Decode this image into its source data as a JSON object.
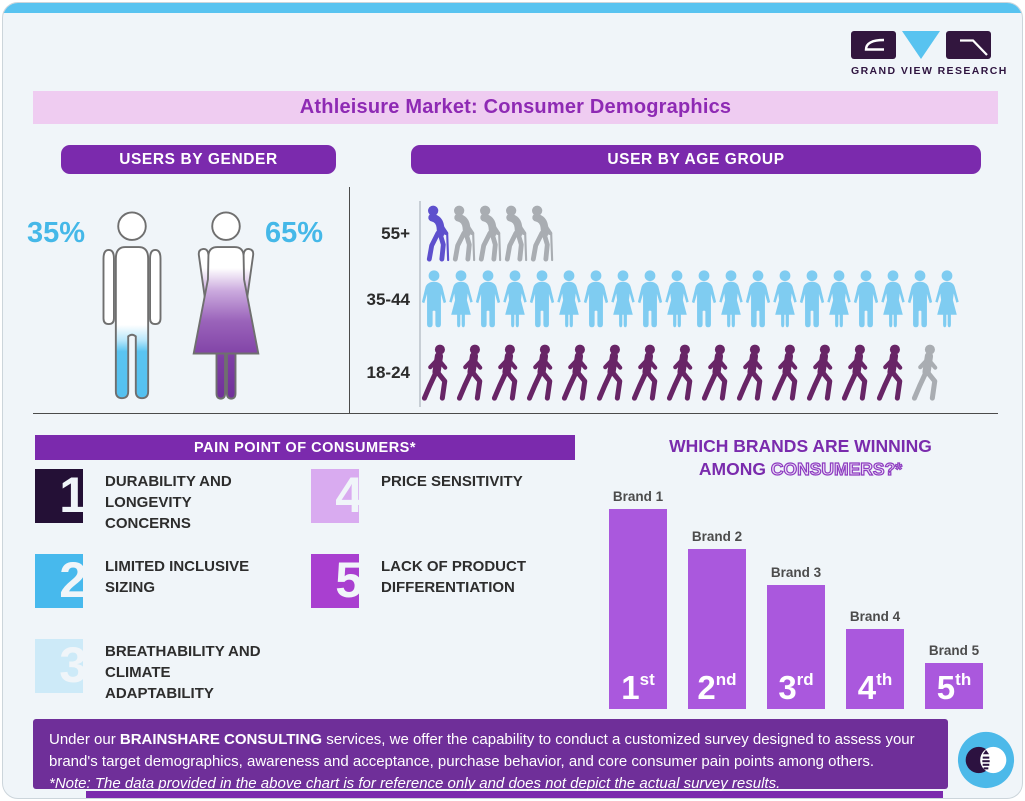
{
  "logo": {
    "text": "GRAND VIEW RESEARCH"
  },
  "page_title": "Athleisure Market: Consumer Demographics",
  "gender_section": {
    "header": "USERS BY GENDER",
    "male_pct": "35%",
    "female_pct": "65%"
  },
  "age_section": {
    "header": "USER BY AGE GROUP",
    "rows": [
      {
        "label": "55+",
        "type": "elderly",
        "total": 5,
        "colored": 1,
        "color": "#5e50cd"
      },
      {
        "label": "35-44",
        "type": "adult",
        "total": 20,
        "colored": 20,
        "color": "#7fccf1"
      },
      {
        "label": "18-24",
        "type": "walker",
        "total": 15,
        "colored": 14,
        "color": "#682566"
      }
    ]
  },
  "pain_points": {
    "header": "PAIN POINT OF CONSUMERS*",
    "items": [
      {
        "num": "1",
        "color": "#241036",
        "label": "DURABILITY AND LONGEVITY CONCERNS"
      },
      {
        "num": "2",
        "color": "#47b9ed",
        "label": "LIMITED INCLUSIVE SIZING"
      },
      {
        "num": "3",
        "color": "#cdeaf8",
        "label": "BREATHABILITY AND CLIMATE ADAPTABILITY"
      },
      {
        "num": "4",
        "color": "#d9abf0",
        "label": "PRICE SENSITIVITY"
      },
      {
        "num": "5",
        "color": "#a93fd0",
        "label": "LACK OF PRODUCT DIFFERENTIATION"
      }
    ]
  },
  "brand_chart": {
    "title_line1": "WHICH BRANDS ARE WINNING",
    "title_line2_solid": "AMONG ",
    "title_line2_outline": "CONSUMERS?*",
    "bars": [
      {
        "category": "Brand 1",
        "rank": "1",
        "suffix": "st",
        "value": 100
      },
      {
        "category": "Brand 2",
        "rank": "2",
        "suffix": "nd",
        "value": 80
      },
      {
        "category": "Brand 3",
        "rank": "3",
        "suffix": "rd",
        "value": 62
      },
      {
        "category": "Brand 4",
        "rank": "4",
        "suffix": "th",
        "value": 40
      },
      {
        "category": "Brand 5",
        "rank": "5",
        "suffix": "th",
        "value": 23
      }
    ],
    "bar_color": "#aa58dd"
  },
  "chart_data": [
    {
      "type": "pictogram",
      "title": "USERS BY GENDER",
      "categories": [
        "Male",
        "Female"
      ],
      "values": [
        35,
        65
      ],
      "unit": "%"
    },
    {
      "type": "pictogram",
      "title": "USER BY AGE GROUP",
      "categories": [
        "55+",
        "35-44",
        "18-24"
      ],
      "values": [
        5,
        20,
        15
      ],
      "note": "icon counts per row; 55+ shows 1 of 5 highlighted, 35-44 all 20 highlighted, 18-24 shows 14 of 15 highlighted"
    },
    {
      "type": "bar",
      "title": "WHICH BRANDS ARE WINNING AMONG CONSUMERS?*",
      "categories": [
        "Brand 1",
        "Brand 2",
        "Brand 3",
        "Brand 4",
        "Brand 5"
      ],
      "values": [
        100,
        80,
        62,
        40,
        23
      ],
      "bar_labels": [
        "1st",
        "2nd",
        "3rd",
        "4th",
        "5th"
      ],
      "value_note": "relative bar heights; no numeric axis shown",
      "xlabel": "",
      "ylabel": "",
      "grid": false,
      "legend": false
    }
  ],
  "footer": {
    "text_prefix": "Under our ",
    "text_bold": "BRAINSHARE CONSULTING",
    "text_suffix": " services, we offer the capability to conduct a customized survey designed to assess your brand's target demographics, awareness and acceptance, purchase behavior, and core consumer pain points among others.",
    "note": "*Note: The data provided in the above chart is for reference only and does not depict the actual survey results."
  },
  "colors": {
    "accent_purple": "#7b2aad",
    "banner_pink": "#efccf1",
    "cyan": "#45b8e8",
    "bar_purple": "#aa58dd",
    "footer_purple": "#6f2f99",
    "muted_gray": "#a9adb2",
    "logo_dark": "#32163e"
  }
}
